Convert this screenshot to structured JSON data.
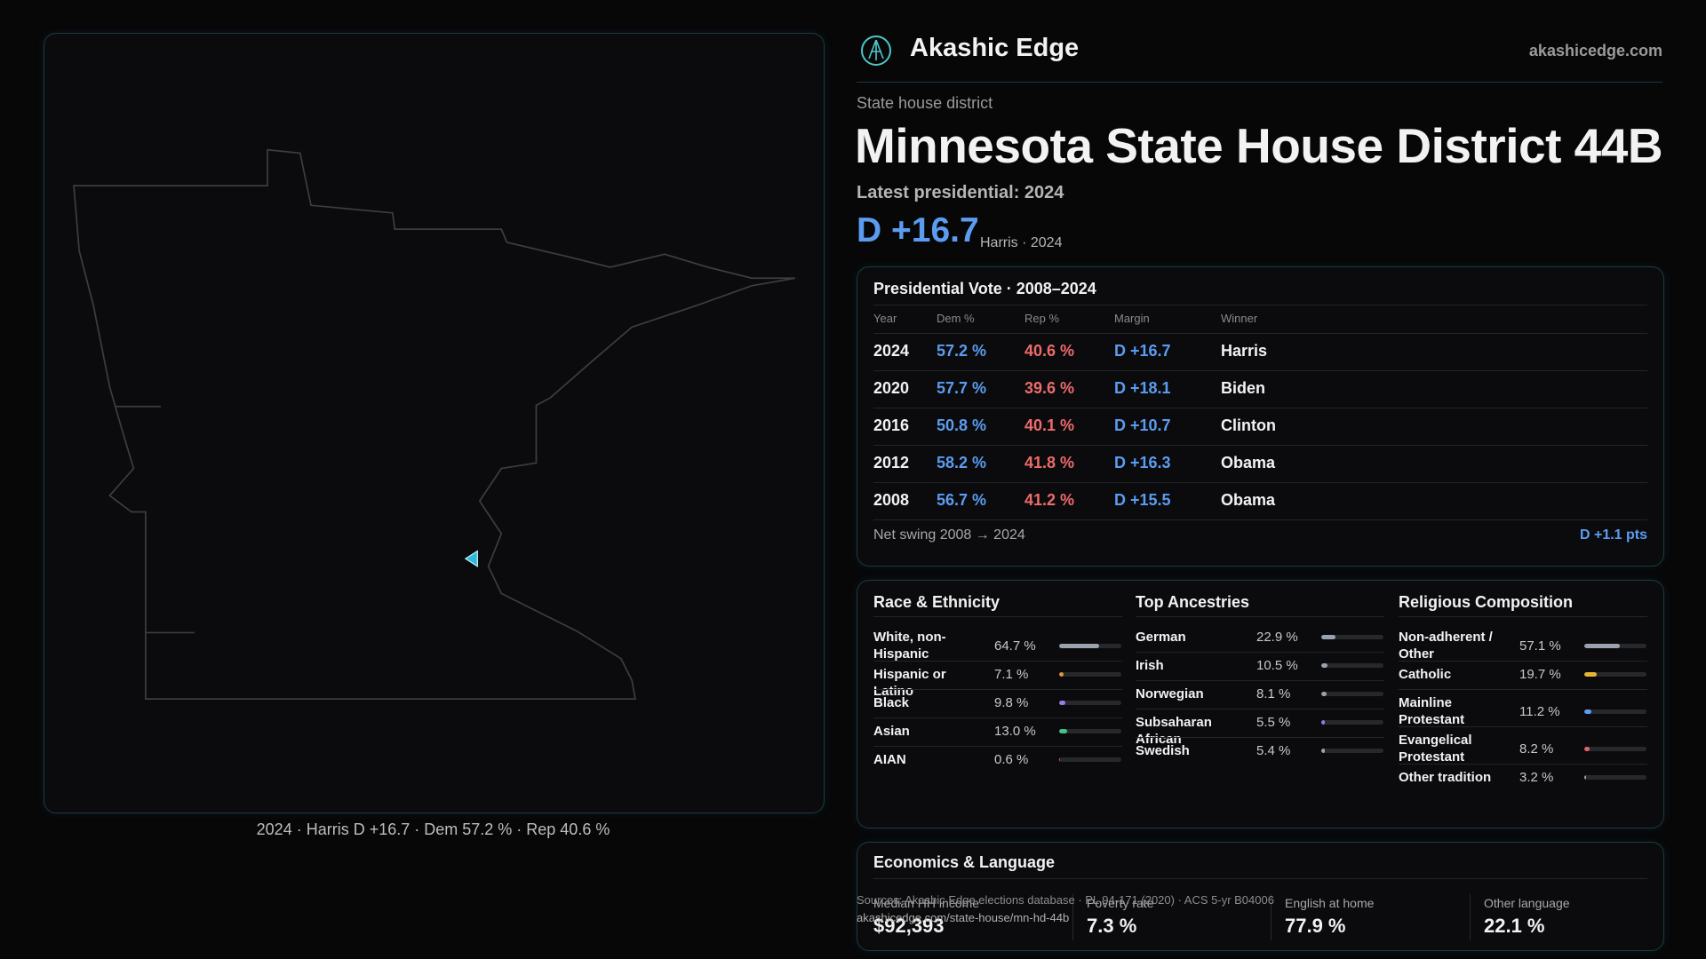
{
  "header": {
    "brand": "Akashic Edge",
    "site": "akashicedge.com"
  },
  "district": {
    "kicker": "State house district",
    "title": "Minnesota State House District 44B",
    "latest": "Latest presidential: 2024",
    "margin": "D +16.7",
    "margin_note": "Harris · 2024"
  },
  "map": {
    "caption": "2024 · Harris D +16.7 · Dem 57.2 % · Rep 40.6 %"
  },
  "vote_table": {
    "title": "Presidential Vote · 2008–2024",
    "columns": [
      "Year",
      "Dem %",
      "Rep %",
      "Margin",
      "Winner"
    ],
    "rows": [
      {
        "year": "2024",
        "dem": "57.2 %",
        "rep": "40.6 %",
        "margin": "D +16.7",
        "winner": "Harris"
      },
      {
        "year": "2020",
        "dem": "57.7 %",
        "rep": "39.6 %",
        "margin": "D +18.1",
        "winner": "Biden"
      },
      {
        "year": "2016",
        "dem": "50.8 %",
        "rep": "40.1 %",
        "margin": "D +10.7",
        "winner": "Clinton"
      },
      {
        "year": "2012",
        "dem": "58.2 %",
        "rep": "41.8 %",
        "margin": "D +16.3",
        "winner": "Obama"
      },
      {
        "year": "2008",
        "dem": "56.7 %",
        "rep": "41.2 %",
        "margin": "D +15.5",
        "winner": "Obama"
      }
    ],
    "swing_label": "Net swing 2008 → 2024",
    "swing_value": "D +1.1 pts"
  },
  "demographics": [
    {
      "title": "Race & Ethnicity",
      "items": [
        {
          "label": "White, non-Hispanic",
          "value": 64.7,
          "value_label": "64.7 %",
          "color": "#9aa3ad"
        },
        {
          "label": "Hispanic or Latino",
          "value": 7.1,
          "value_label": "7.1 %",
          "color": "#e0963a"
        },
        {
          "label": "Black",
          "value": 9.8,
          "value_label": "9.8 %",
          "color": "#9b7be6"
        },
        {
          "label": "Asian",
          "value": 13.0,
          "value_label": "13.0 %",
          "color": "#3fc48a"
        },
        {
          "label": "AIAN",
          "value": 0.6,
          "value_label": "0.6 %",
          "color": "#e05a4e"
        }
      ]
    },
    {
      "title": "Top Ancestries",
      "items": [
        {
          "label": "German",
          "value": 22.9,
          "value_label": "22.9 %",
          "color": "#9aa3ad"
        },
        {
          "label": "Irish",
          "value": 10.5,
          "value_label": "10.5 %",
          "color": "#9aa3ad"
        },
        {
          "label": "Norwegian",
          "value": 8.1,
          "value_label": "8.1 %",
          "color": "#9aa3ad"
        },
        {
          "label": "Subsaharan African",
          "value": 5.5,
          "value_label": "5.5 %",
          "color": "#8a7be0"
        },
        {
          "label": "Swedish",
          "value": 5.4,
          "value_label": "5.4 %",
          "color": "#9aa3ad"
        }
      ]
    },
    {
      "title": "Religious Composition",
      "items": [
        {
          "label": "Non-adherent / Other",
          "value": 57.1,
          "value_label": "57.1 %",
          "color": "#9aa3ad"
        },
        {
          "label": "Catholic",
          "value": 19.7,
          "value_label": "19.7 %",
          "color": "#e8b531"
        },
        {
          "label": "Mainline Protestant",
          "value": 11.2,
          "value_label": "11.2 %",
          "color": "#5b9cf0"
        },
        {
          "label": "Evangelical Protestant",
          "value": 8.2,
          "value_label": "8.2 %",
          "color": "#e0636a"
        },
        {
          "label": "Other tradition",
          "value": 3.2,
          "value_label": "3.2 %",
          "color": "#9aa3ad"
        }
      ]
    }
  ],
  "economics": {
    "title": "Economics & Language",
    "stats": [
      {
        "label": "Median HH income",
        "value": "$92,393"
      },
      {
        "label": "Poverty rate",
        "value": "7.3 %"
      },
      {
        "label": "English at home",
        "value": "77.9 %"
      },
      {
        "label": "Other language",
        "value": "22.1 %"
      }
    ]
  },
  "footer": {
    "sources": "Sources: Akashic Edge elections database · PL 94-171 (2020) · ACS 5-yr B04006",
    "url": "akashicedge.com/state-house/mn-hd-44b"
  }
}
